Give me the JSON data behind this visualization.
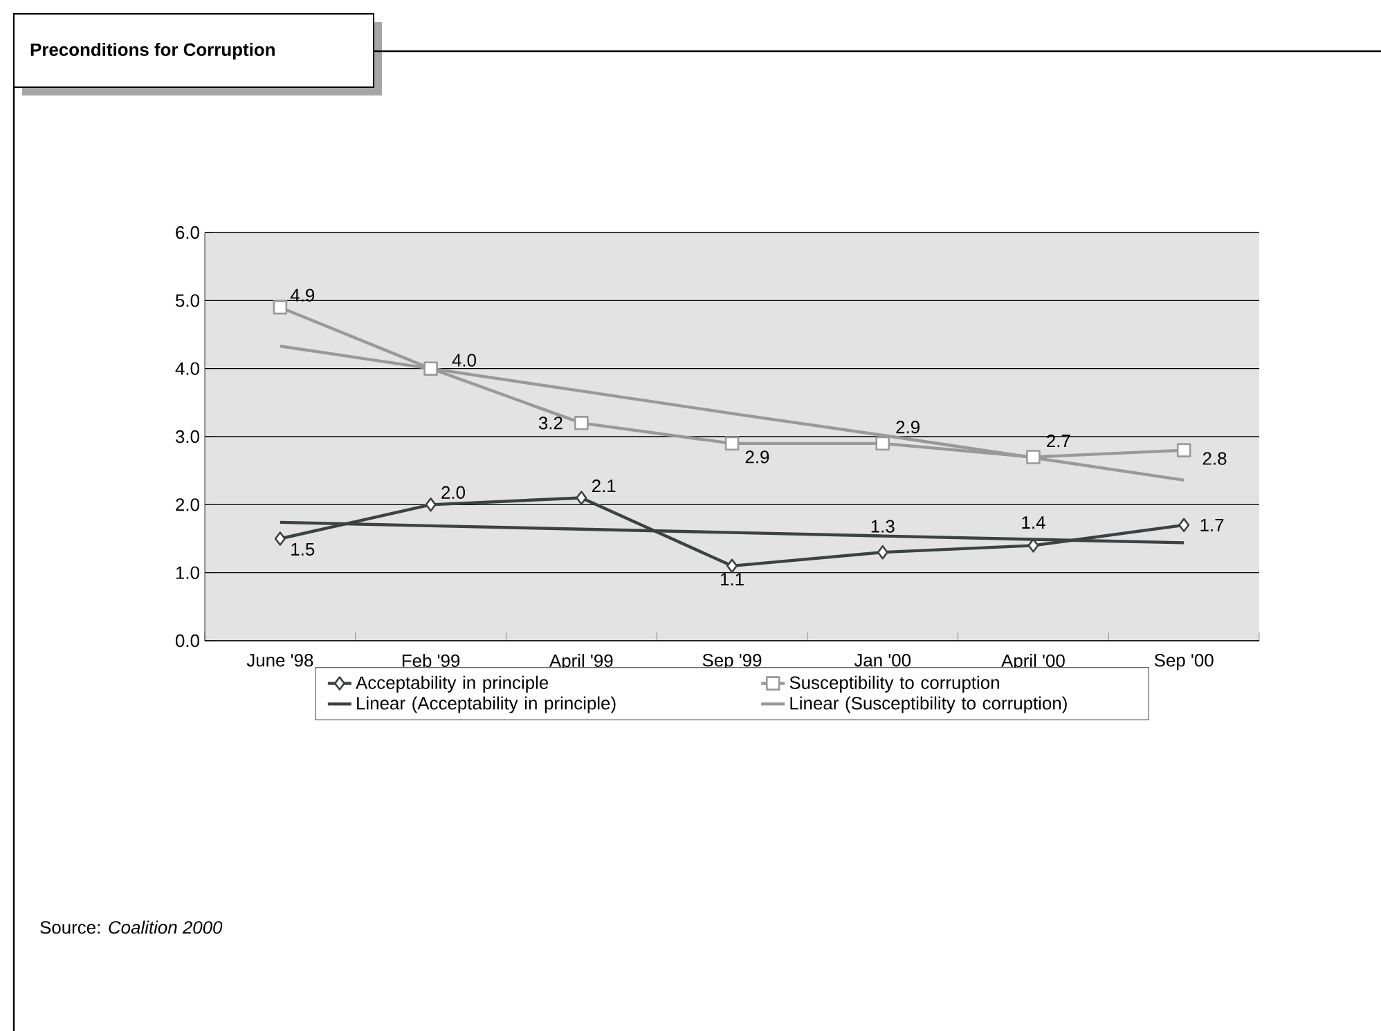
{
  "chart_data": {
    "type": "line",
    "title": "Preconditions for Corruption",
    "categories": [
      "June '98",
      "Feb '99",
      "April '99",
      "Sep '99",
      "Jan '00",
      "April '00",
      "Sep '00"
    ],
    "series": [
      {
        "name": "Acceptability in principle",
        "color": "#3c4242",
        "marker": "diamond",
        "values": [
          1.5,
          2.0,
          2.1,
          1.1,
          1.3,
          1.4,
          1.7
        ],
        "value_labels": [
          "1.5",
          "2.0",
          "2.1",
          "1.1",
          "1.3",
          "1.4",
          "1.7"
        ]
      },
      {
        "name": "Susceptibility to corruption",
        "color": "#999999",
        "marker": "square",
        "values": [
          4.9,
          4.0,
          3.2,
          2.9,
          2.9,
          2.7,
          2.8
        ],
        "value_labels": [
          "4.9",
          "4.0",
          "3.2",
          "2.9",
          "2.9",
          "2.7",
          "2.8"
        ]
      },
      {
        "name": "Linear (Acceptability in principle)",
        "color": "#3c4242",
        "marker": "none",
        "values": [
          1.74,
          1.69,
          1.64,
          1.59,
          1.54,
          1.49,
          1.44
        ]
      },
      {
        "name": "Linear (Susceptibility to corruption)",
        "color": "#999999",
        "marker": "none",
        "values": [
          4.33,
          4.0,
          3.67,
          3.34,
          3.02,
          2.69,
          2.36
        ]
      }
    ],
    "ylim": [
      0,
      6
    ],
    "yticks": [
      {
        "value": 0,
        "label": "0.0"
      },
      {
        "value": 1,
        "label": "1.0"
      },
      {
        "value": 2,
        "label": "2.0"
      },
      {
        "value": 3,
        "label": "3.0"
      },
      {
        "value": 4,
        "label": "4.0"
      },
      {
        "value": 5,
        "label": "5.0"
      },
      {
        "value": 6,
        "label": "6.0"
      }
    ],
    "grid": "y",
    "legend": "bottom",
    "annotations": [
      "Source: *Coalition 2000*"
    ]
  }
}
